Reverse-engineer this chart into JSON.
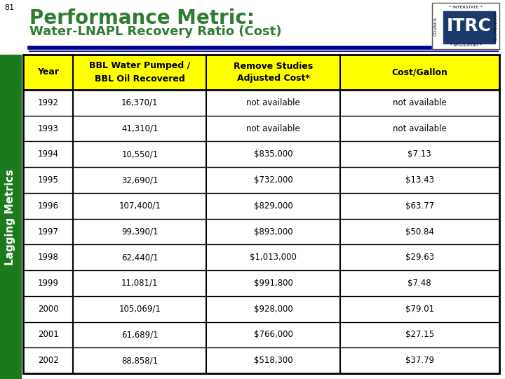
{
  "slide_number": "81",
  "title_line1": "Performance Metric:",
  "title_line2": "Water-LNAPL Recovery Ratio (Cost)",
  "title_color1": "#2E7D32",
  "title_color2": "#1565C0",
  "side_label": "Lagging Metrics",
  "side_bg_color": "#1B7A1B",
  "header_bg_color": "#FFFF00",
  "table_border": "#000000",
  "divider_color1": "#00008B",
  "divider_color2": "#000080",
  "outer_bg": "#FFFFFF",
  "rows": [
    [
      "1992",
      "16,370/1",
      "not available",
      "not available"
    ],
    [
      "1993",
      "41,310/1",
      "not available",
      "not available"
    ],
    [
      "1994",
      "10,550/1",
      "$835,000",
      "$7.13"
    ],
    [
      "1995",
      "32,690/1",
      "$732,000",
      "$13.43"
    ],
    [
      "1996",
      "107,400/1",
      "$829,000",
      "$63.77"
    ],
    [
      "1997",
      "99,390/1",
      "$893,000",
      "$50.84"
    ],
    [
      "1998",
      "62,440/1",
      "$1,013,000",
      "$29.63"
    ],
    [
      "1999",
      "11,081/1",
      "$991,800",
      "$7.48"
    ],
    [
      "2000",
      "105,069/1",
      "$928,000",
      "$79.01"
    ],
    [
      "2001",
      "61,689/1",
      "$766,000",
      "$27.15"
    ],
    [
      "2002",
      "88,858/1",
      "$518,300",
      "$37.79"
    ]
  ]
}
